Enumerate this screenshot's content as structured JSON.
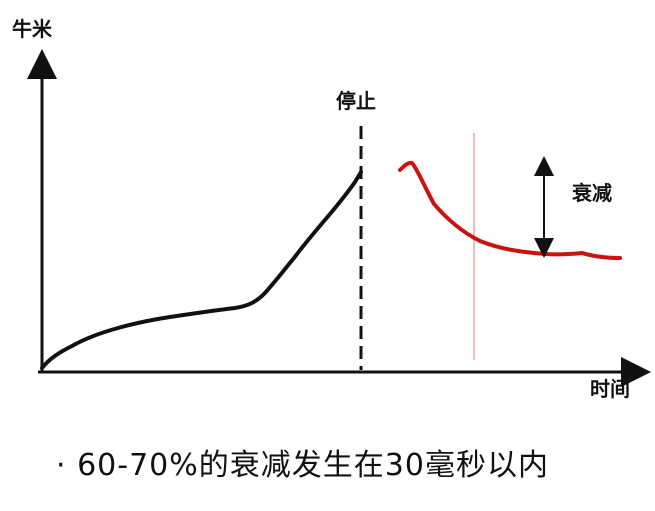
{
  "diagram": {
    "y_axis_label": "牛米",
    "x_axis_label": "时间",
    "stop_label": "停止",
    "decay_label": "衰减"
  },
  "caption": {
    "bullet": "·",
    "text": "60-70%的衰减发生在30毫秒以内"
  },
  "colors": {
    "force_curve": "#111111",
    "decay_curve": "#cc1111",
    "reference_line": "#f0a0a0"
  }
}
